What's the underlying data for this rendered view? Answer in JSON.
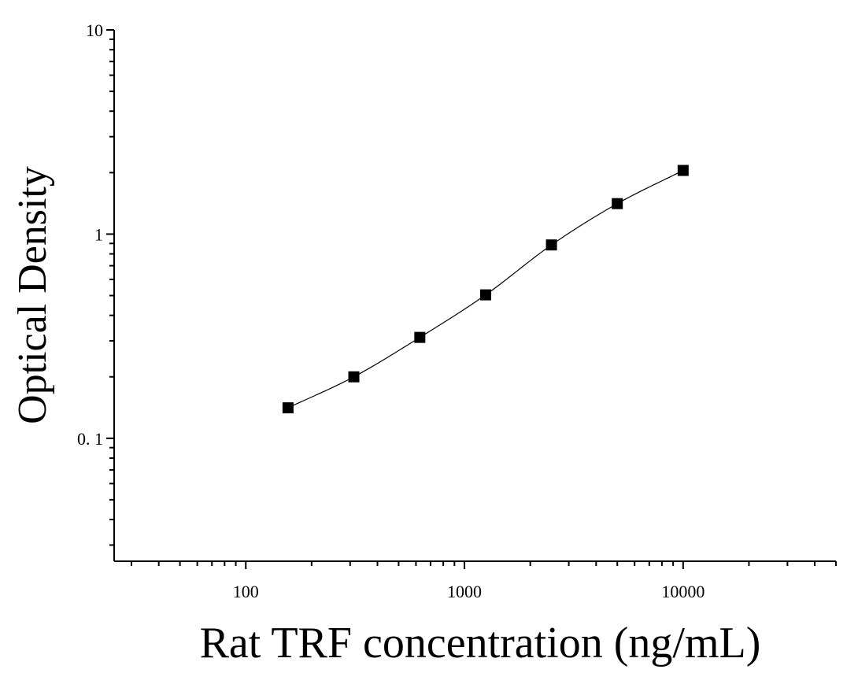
{
  "chart_data": {
    "type": "scatter",
    "xlabel": "Rat TRF concentration (ng/mL)",
    "ylabel": "Optical Density",
    "x_scale": "log",
    "y_scale": "log",
    "xlim": [
      25,
      50000
    ],
    "ylim": [
      0.025,
      10
    ],
    "x_ticks": [
      100,
      1000,
      10000
    ],
    "x_tick_labels": [
      "100",
      "1000",
      "10000"
    ],
    "y_ticks": [
      0.1,
      1,
      10
    ],
    "y_tick_labels": [
      "0. 1",
      "1",
      "10"
    ],
    "grid": false,
    "legend": "none",
    "series": [
      {
        "x": [
          156,
          312,
          625,
          1250,
          2500,
          5000,
          10000
        ],
        "y": [
          0.141,
          0.2,
          0.312,
          0.504,
          0.885,
          1.41,
          2.05
        ],
        "marker": "square",
        "fit_curve": true,
        "color": "#000000"
      }
    ]
  }
}
